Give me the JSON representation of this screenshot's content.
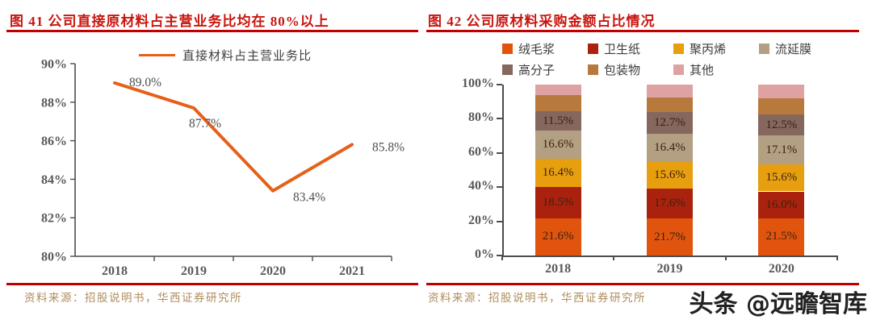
{
  "figures": [
    {
      "title": "图 41 公司直接原材料占主营业务比均在 80%以上",
      "source": "资料来源：招股说明书，华西证券研究所"
    },
    {
      "title": "图 42 公司原材料采购金额占比情况",
      "source": "资料来源：招股说明书，华西证券研究所"
    }
  ],
  "watermark": "头条 @远瞻智库",
  "colors": {
    "title_red": "#C9150F",
    "rule_red": "#C00000",
    "source_tan": "#AE8C5C",
    "axis_text": "#595959",
    "line_orange": "#E5611A"
  },
  "chart_data": [
    {
      "type": "line",
      "title": "图 41 公司直接原材料占主营业务比均在 80%以上",
      "legend": [
        "直接材料占主营业务比"
      ],
      "legend_position": "top",
      "categories": [
        "2018",
        "2019",
        "2020",
        "2021"
      ],
      "values": [
        89.0,
        87.7,
        83.4,
        85.8
      ],
      "labels": [
        "89.0%",
        "87.7%",
        "83.4%",
        "85.8%"
      ],
      "ylim": [
        80,
        90
      ],
      "y_ticks": [
        "80%",
        "82%",
        "84%",
        "86%",
        "88%",
        "90%"
      ],
      "grid": false,
      "line_color": "#E5611A"
    },
    {
      "type": "stacked-bar",
      "title": "图 42 公司原材料采购金额占比情况",
      "legend_position": "top",
      "categories": [
        "2018",
        "2019",
        "2020"
      ],
      "ylim": [
        0,
        100
      ],
      "y_ticks": [
        "0%",
        "20%",
        "40%",
        "60%",
        "80%",
        "100%"
      ],
      "grid": false,
      "series": [
        {
          "name": "绒毛浆",
          "color": "#E1540E",
          "values": [
            21.6,
            21.7,
            21.5
          ],
          "labels": [
            "21.6%",
            "21.7%",
            "21.5%"
          ]
        },
        {
          "name": "卫生纸",
          "color": "#AA220D",
          "values": [
            18.5,
            17.6,
            16.0
          ],
          "labels": [
            "18.5%",
            "17.6%",
            "16.0%"
          ]
        },
        {
          "name": "聚丙烯",
          "color": "#E89F0F",
          "values": [
            16.4,
            15.6,
            15.6
          ],
          "labels": [
            "16.4%",
            "15.6%",
            "15.6%"
          ]
        },
        {
          "name": "流延膜",
          "color": "#B39F82",
          "values": [
            16.6,
            16.4,
            17.1
          ],
          "labels": [
            "16.6%",
            "16.4%",
            "17.1%"
          ]
        },
        {
          "name": "高分子",
          "color": "#85675E",
          "values": [
            11.5,
            12.7,
            12.5
          ],
          "labels": [
            "11.5%",
            "12.7%",
            "12.5%"
          ]
        },
        {
          "name": "包装物",
          "color": "#B8793C",
          "values": [
            9.5,
            8.3,
            9.1
          ],
          "labels": [
            "",
            "",
            ""
          ]
        },
        {
          "name": "其他",
          "color": "#DFA2A2",
          "values": [
            5.9,
            7.7,
            8.2
          ],
          "labels": [
            "",
            "",
            ""
          ]
        }
      ]
    }
  ]
}
